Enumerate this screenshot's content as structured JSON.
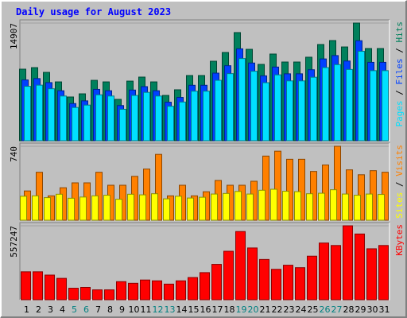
{
  "chart_data": [
    {
      "type": "bar",
      "title": "Daily usage for August 2023",
      "ylim": [
        0,
        14907
      ],
      "yticks": [
        14907
      ],
      "series": [
        {
          "name": "Hits",
          "color": "#00805c",
          "values": [
            9065,
            9260,
            8660,
            7450,
            5540,
            5940,
            7650,
            7450,
            5240,
            7550,
            8060,
            7450,
            5740,
            6450,
            8260,
            8260,
            10070,
            11180,
            13700,
            11580,
            9670,
            10980,
            9970,
            9970,
            10580,
            12190,
            12690,
            11880,
            14907,
            11680,
            11680
          ]
        },
        {
          "name": "Files",
          "color": "#0040ff",
          "values": [
            7705,
            7871,
            7361,
            6333,
            4709,
            5049,
            6503,
            6333,
            4454,
            6418,
            6851,
            6333,
            4879,
            5483,
            7021,
            7021,
            8560,
            9503,
            11645,
            9843,
            8220,
            9333,
            8475,
            8475,
            8993,
            10362,
            10787,
            10098,
            12671,
            9928,
            9928
          ]
        },
        {
          "name": "Pages",
          "color": "#00e0ff",
          "values": [
            6890,
            7038,
            6582,
            5662,
            4210,
            4514,
            5814,
            5662,
            3982,
            5738,
            6126,
            5662,
            4362,
            4902,
            6278,
            6278,
            7653,
            8497,
            10412,
            8801,
            7349,
            8345,
            7577,
            7577,
            8041,
            9264,
            9644,
            9029,
            11329,
            8877,
            8877
          ]
        }
      ]
    },
    {
      "type": "bar",
      "ylim": [
        0,
        740
      ],
      "yticks": [
        740
      ],
      "series": [
        {
          "name": "Visits",
          "color": "#ff8000",
          "values": [
            293,
            480,
            244,
            325,
            374,
            374,
            480,
            350,
            350,
            439,
            512,
            659,
            244,
            350,
            244,
            285,
            398,
            350,
            350,
            390,
            642,
            691,
            610,
            610,
            488,
            553,
            740,
            504,
            455,
            496,
            480
          ]
        },
        {
          "name": "Sites",
          "color": "#ffff00",
          "values": [
            240,
            244,
            226,
            260,
            220,
            232,
            244,
            250,
            210,
            260,
            254,
            265,
            214,
            240,
            222,
            230,
            262,
            268,
            288,
            262,
            300,
            310,
            290,
            286,
            265,
            270,
            305,
            262,
            250,
            262,
            258
          ]
        }
      ]
    },
    {
      "type": "bar",
      "ylim": [
        0,
        557247
      ],
      "yticks": [
        557247
      ],
      "categories": [
        "1",
        "2",
        "3",
        "4",
        "5",
        "6",
        "7",
        "8",
        "9",
        "10",
        "11",
        "12",
        "13",
        "14",
        "15",
        "16",
        "17",
        "18",
        "19",
        "20",
        "21",
        "22",
        "23",
        "24",
        "25",
        "26",
        "27",
        "28",
        "29",
        "30",
        "31"
      ],
      "category_colors": [
        "#000000",
        "#000000",
        "#000000",
        "#000000",
        "#008080",
        "#008080",
        "#000000",
        "#000000",
        "#000000",
        "#000000",
        "#000000",
        "#008080",
        "#008080",
        "#000000",
        "#000000",
        "#000000",
        "#000000",
        "#000000",
        "#008080",
        "#008080",
        "#000000",
        "#000000",
        "#000000",
        "#000000",
        "#000000",
        "#008080",
        "#008080",
        "#000000",
        "#000000",
        "#000000",
        "#000000"
      ],
      "series": [
        {
          "name": "KBytes",
          "color": "#ff0000",
          "values": [
            210528,
            210528,
            185760,
            160992,
            86688,
            92880,
            74304,
            74304,
            136224,
            123840,
            148608,
            142416,
            117648,
            142416,
            167184,
            204336,
            266256,
            365328,
            513936,
            390096,
            303408,
            229104,
            260064,
            241488,
            328176,
            427248,
            408672,
            557247,
            495360,
            383904,
            408672
          ]
        }
      ]
    }
  ]
}
